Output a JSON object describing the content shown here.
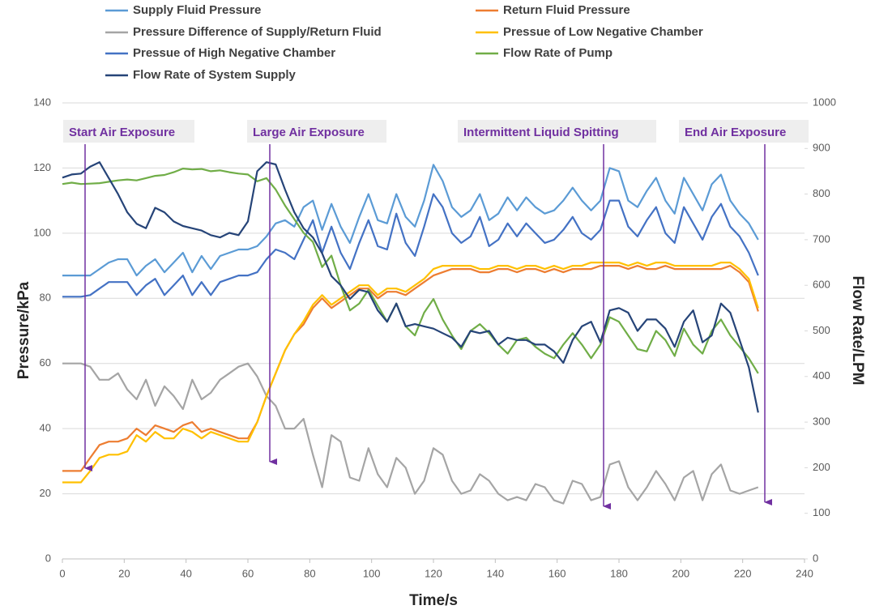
{
  "chart_data": {
    "type": "line",
    "x": [
      0,
      3,
      6,
      9,
      12,
      15,
      18,
      21,
      24,
      27,
      30,
      33,
      36,
      39,
      42,
      45,
      48,
      51,
      54,
      57,
      60,
      63,
      66,
      69,
      72,
      75,
      78,
      81,
      84,
      87,
      90,
      93,
      96,
      99,
      102,
      105,
      108,
      111,
      114,
      117,
      120,
      123,
      126,
      129,
      132,
      135,
      138,
      141,
      144,
      147,
      150,
      153,
      156,
      159,
      162,
      165,
      168,
      171,
      174,
      177,
      180,
      183,
      186,
      189,
      192,
      195,
      198,
      201,
      204,
      207,
      210,
      213,
      216,
      219,
      222,
      225
    ],
    "series": [
      {
        "name": "Supply Fluid Pressure",
        "color": "#5b9bd5",
        "values": [
          87,
          87,
          87,
          87,
          89,
          91,
          92,
          92,
          87,
          90,
          92,
          88,
          91,
          94,
          88,
          93,
          89,
          93,
          94,
          95,
          95,
          96,
          99,
          103,
          104,
          102,
          108,
          110,
          101,
          109,
          102,
          97,
          105,
          112,
          104,
          103,
          112,
          105,
          102,
          110,
          121,
          116,
          108,
          105,
          107,
          112,
          104,
          106,
          111,
          107,
          111,
          108,
          106,
          107,
          110,
          114,
          110,
          107,
          110,
          120,
          119,
          110,
          108,
          113,
          117,
          110,
          106,
          117,
          112,
          107,
          115,
          118,
          110,
          106,
          103,
          98
        ]
      },
      {
        "name": "Return Fluid Pressure",
        "color": "#ed7d31",
        "values": [
          27,
          27,
          27,
          31,
          35,
          36,
          36,
          37,
          40,
          38,
          41,
          40,
          39,
          41,
          42,
          39,
          40,
          39,
          38,
          37,
          37,
          42,
          50,
          57,
          64,
          69,
          72,
          77,
          80,
          77,
          79,
          81,
          83,
          83,
          80,
          82,
          82,
          81,
          83,
          85,
          87,
          88,
          89,
          89,
          89,
          88,
          88,
          89,
          89,
          88,
          89,
          89,
          88,
          89,
          88,
          89,
          89,
          89,
          90,
          90,
          90,
          89,
          90,
          89,
          89,
          90,
          89,
          89,
          89,
          89,
          89,
          89,
          90,
          88,
          85,
          76
        ]
      },
      {
        "name": "Pressure Difference of Supply/Return Fluid",
        "color": "#a5a5a5",
        "values": [
          60,
          60,
          60,
          59,
          55,
          55,
          57,
          52,
          49,
          55,
          47,
          53,
          50,
          46,
          55,
          49,
          51,
          55,
          57,
          59,
          60,
          56,
          50,
          47,
          40,
          40,
          43,
          32,
          22,
          38,
          36,
          25,
          24,
          34,
          26,
          22,
          31,
          28,
          20,
          24,
          34,
          32,
          24,
          20,
          21,
          26,
          24,
          20,
          18,
          19,
          18,
          23,
          22,
          18,
          17,
          24,
          23,
          18,
          19,
          29,
          30,
          22,
          18,
          22,
          27,
          23,
          18,
          25,
          27,
          18,
          26,
          29,
          21,
          20,
          21,
          22
        ]
      },
      {
        "name": "Pressue of Low Negative Chamber",
        "color": "#ffc000",
        "values": [
          23.5,
          23.5,
          23.5,
          27,
          31,
          32,
          32,
          33,
          38,
          36,
          39,
          37,
          37,
          40,
          39,
          37,
          39,
          38,
          37,
          36,
          36,
          42,
          50,
          57,
          64,
          69,
          73,
          78,
          81,
          78,
          80,
          82,
          84,
          84,
          81,
          83,
          83,
          82,
          84,
          86,
          89,
          90,
          90,
          90,
          90,
          89,
          89,
          90,
          90,
          89,
          90,
          90,
          89,
          90,
          89,
          90,
          90,
          91,
          91,
          91,
          91,
          90,
          91,
          90,
          91,
          91,
          90,
          90,
          90,
          90,
          90,
          91,
          91,
          89,
          86,
          77
        ]
      },
      {
        "name": "Pressue of High Negative Chamber",
        "color": "#4472c4",
        "values": [
          80.5,
          80.5,
          80.5,
          81,
          83,
          85,
          85,
          85,
          81,
          84,
          86,
          81,
          84,
          87,
          81,
          85,
          81,
          85,
          86,
          87,
          87,
          88,
          92,
          95,
          94,
          92,
          98,
          104,
          94,
          102,
          94,
          89,
          97,
          104,
          96,
          95,
          106,
          97,
          93,
          102,
          112,
          108,
          100,
          97,
          99,
          105,
          96,
          98,
          103,
          99,
          103,
          100,
          97,
          98,
          101,
          105,
          100,
          98,
          101,
          110,
          110,
          102,
          99,
          104,
          108,
          100,
          97,
          108,
          103,
          98,
          105,
          109,
          102,
          99,
          94,
          87
        ]
      },
      {
        "name": "Flow Rate of Pump",
        "color": "#70ad47",
        "axis": "y2",
        "values": [
          822,
          825,
          822,
          823,
          824,
          827,
          830,
          832,
          830,
          835,
          840,
          842,
          848,
          856,
          854,
          855,
          850,
          852,
          848,
          845,
          843,
          828,
          835,
          810,
          775,
          745,
          715,
          695,
          640,
          665,
          600,
          545,
          560,
          590,
          555,
          520,
          560,
          510,
          490,
          540,
          570,
          525,
          490,
          460,
          500,
          515,
          495,
          470,
          450,
          480,
          485,
          465,
          450,
          440,
          470,
          495,
          470,
          440,
          470,
          530,
          520,
          490,
          460,
          455,
          500,
          480,
          445,
          505,
          470,
          450,
          500,
          525,
          490,
          465,
          440,
          407
        ]
      },
      {
        "name": "Flow Rate of System Supply",
        "color": "#264478",
        "axis": "y2",
        "values": [
          836,
          843,
          845,
          860,
          870,
          835,
          800,
          760,
          735,
          725,
          770,
          760,
          740,
          730,
          725,
          720,
          710,
          705,
          715,
          710,
          740,
          850,
          870,
          865,
          810,
          760,
          725,
          705,
          670,
          620,
          600,
          570,
          590,
          585,
          545,
          520,
          560,
          510,
          515,
          510,
          505,
          495,
          485,
          465,
          500,
          495,
          500,
          470,
          485,
          480,
          480,
          470,
          470,
          455,
          430,
          480,
          510,
          520,
          475,
          545,
          550,
          540,
          500,
          525,
          525,
          505,
          465,
          520,
          545,
          475,
          490,
          560,
          540,
          480,
          420,
          321
        ]
      }
    ],
    "xlabel": "Time/s",
    "ylabel": "Pressure/kPa",
    "y2label": "Flow Rate/LPM",
    "xlim": [
      0,
      240
    ],
    "xticks": [
      0,
      20,
      40,
      60,
      80,
      100,
      120,
      140,
      160,
      180,
      200,
      220,
      240
    ],
    "ylim": [
      0,
      140
    ],
    "yticks": [
      0,
      20,
      40,
      60,
      80,
      100,
      120,
      140
    ],
    "y2lim": [
      0,
      1000
    ],
    "y2ticks": [
      0,
      100,
      200,
      300,
      400,
      500,
      600,
      700,
      800,
      900,
      1000
    ],
    "grid": true,
    "legend": "top",
    "annotations": [
      "Start Air Exposure",
      "Large Air Exposure",
      "Intermittent Liquid Spitting",
      "End Air Exposure"
    ]
  }
}
